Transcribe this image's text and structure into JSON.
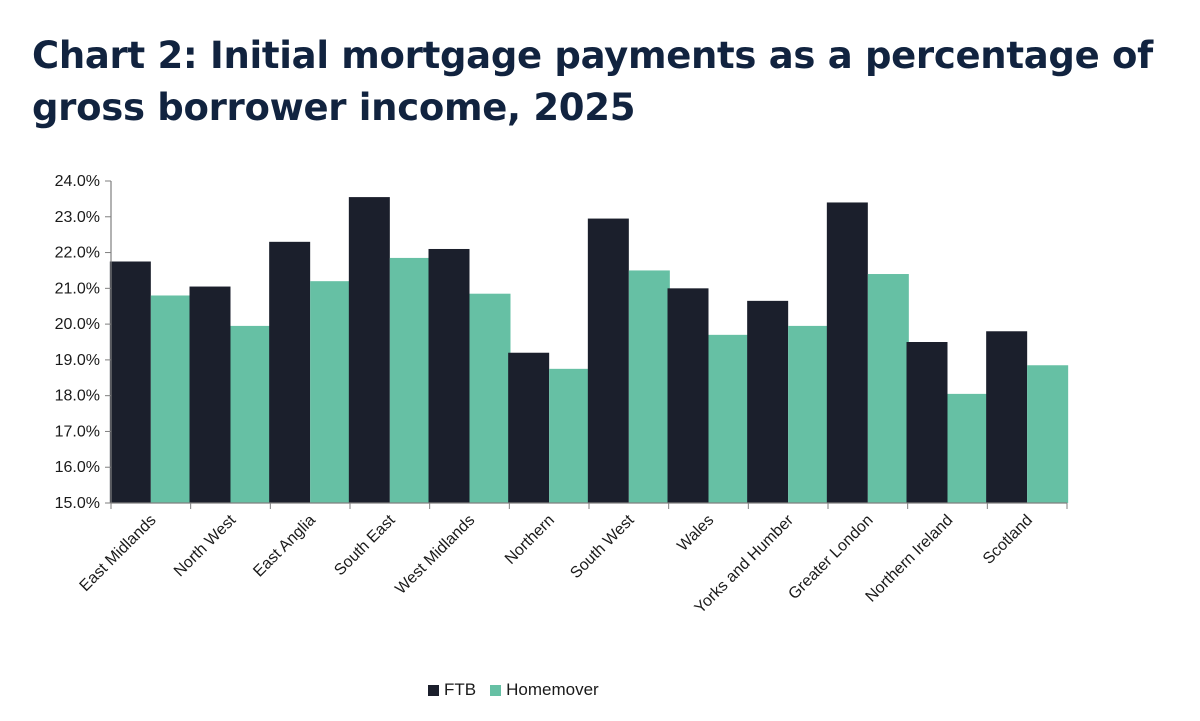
{
  "title": "Chart 2: Initial mortgage payments as a percentage of gross borrower income, 2025",
  "colors": {
    "FTB": "#1b1f2c",
    "Homemover": "#66c0a4",
    "axis": "#7f7f7f"
  },
  "chart_data": {
    "type": "bar",
    "title": "Chart 2: Initial mortgage payments as a percentage of gross borrower income, 2025",
    "xlabel": "",
    "ylabel": "",
    "ylim": [
      15.0,
      24.0
    ],
    "yticks": [
      "15.0%",
      "16.0%",
      "17.0%",
      "18.0%",
      "19.0%",
      "20.0%",
      "21.0%",
      "22.0%",
      "23.0%",
      "24.0%"
    ],
    "grid": false,
    "legend_position": "bottom",
    "categories": [
      "East Midlands",
      "North West",
      "East Anglia",
      "South East",
      "West Midlands",
      "Northern",
      "South West",
      "Wales",
      "Yorks and Humber",
      "Greater London",
      "Northern Ireland",
      "Scotland"
    ],
    "series": [
      {
        "name": "FTB",
        "values": [
          21.75,
          21.05,
          22.3,
          23.55,
          22.1,
          19.2,
          22.95,
          21.0,
          20.65,
          23.4,
          19.5,
          19.8
        ]
      },
      {
        "name": "Homemover",
        "values": [
          20.8,
          19.95,
          21.2,
          21.85,
          20.85,
          18.75,
          21.5,
          19.7,
          19.95,
          21.4,
          18.05,
          18.85
        ]
      }
    ]
  }
}
